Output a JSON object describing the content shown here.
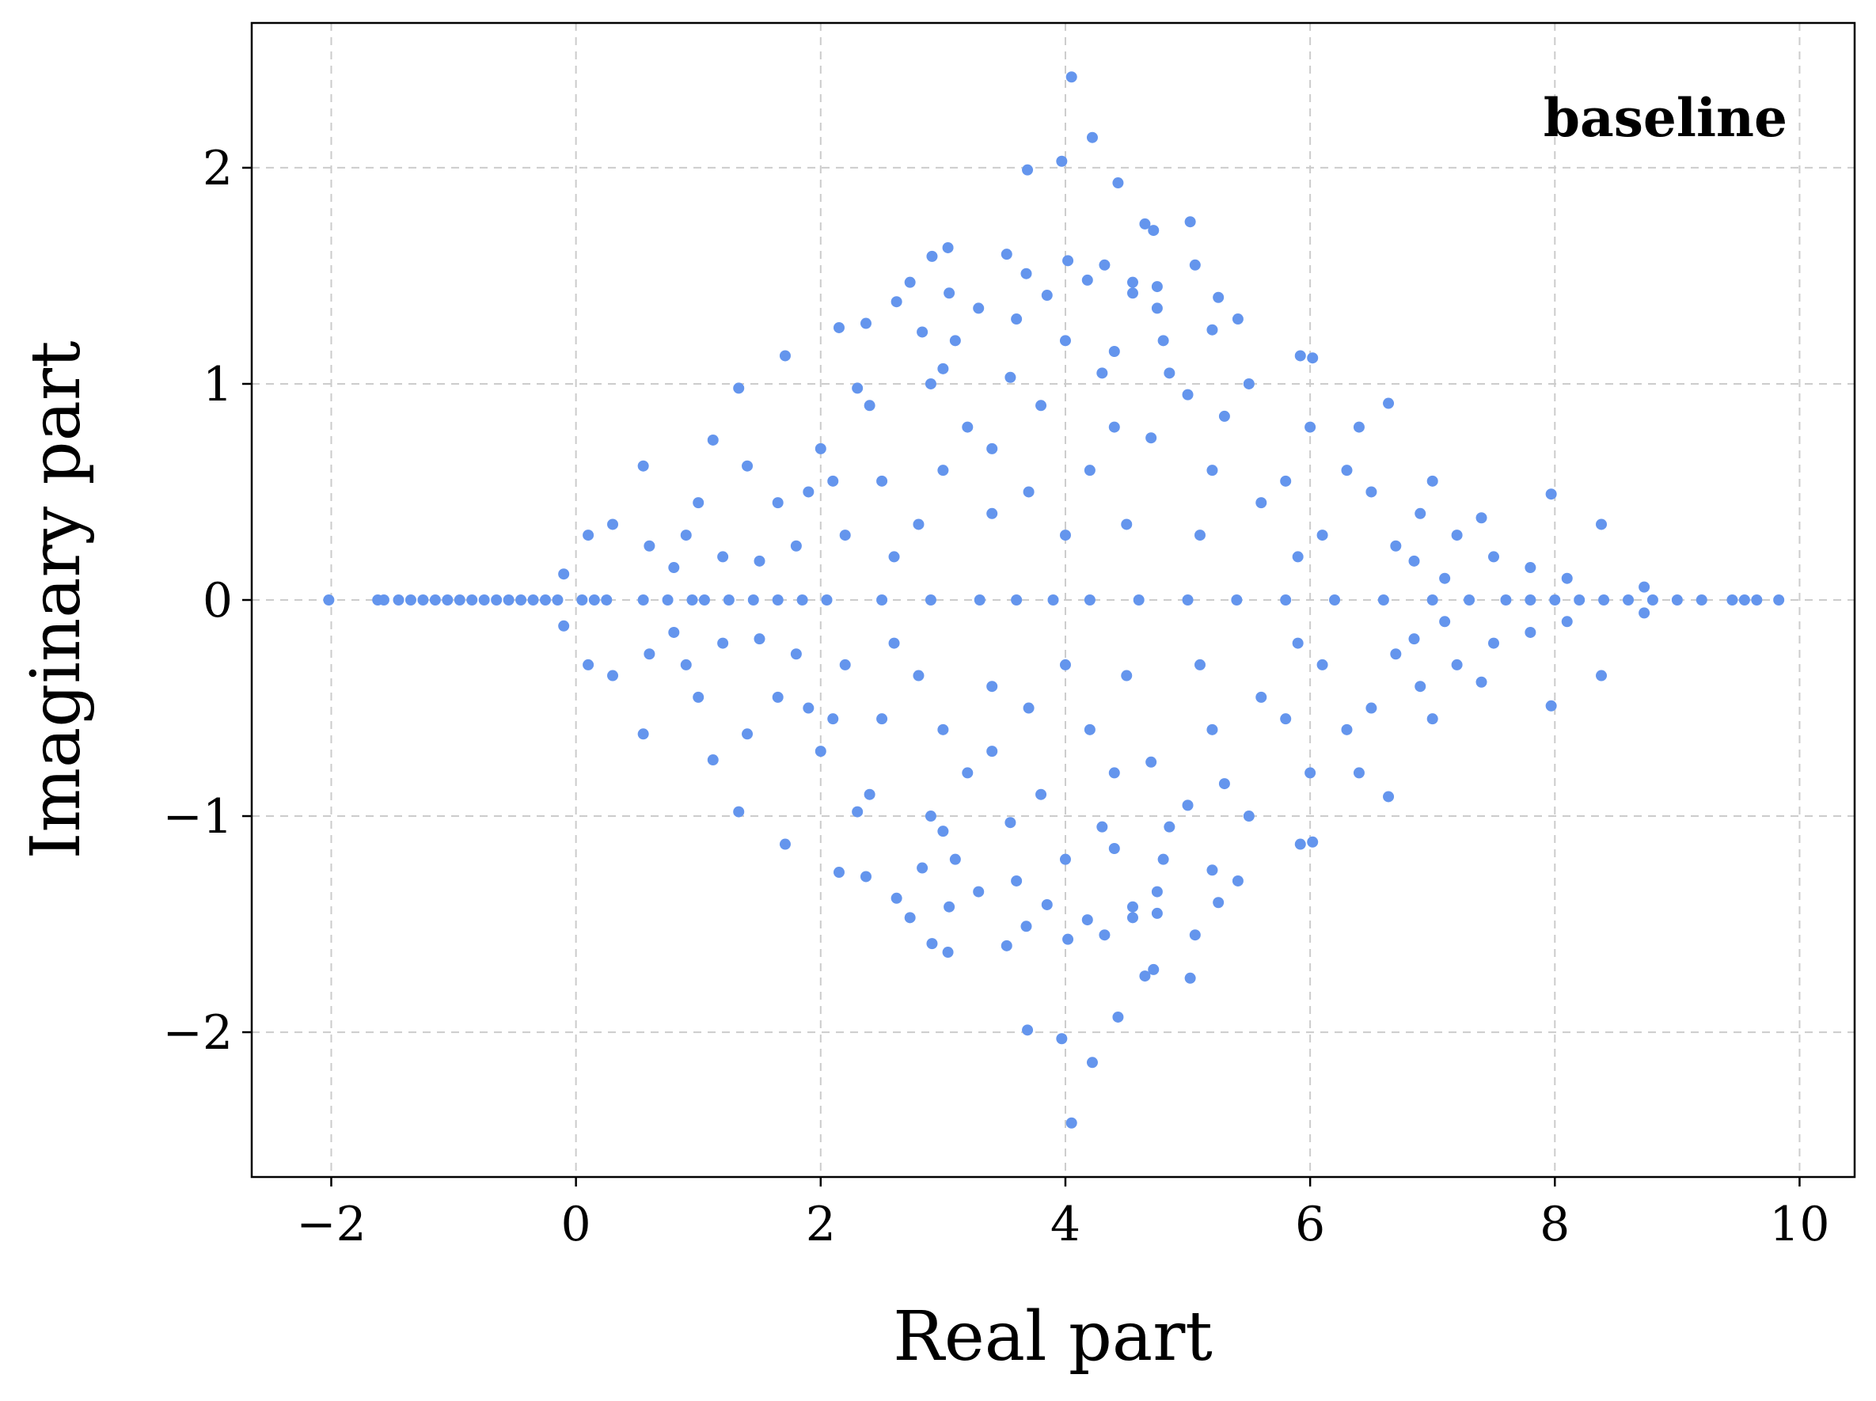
{
  "chart_data": {
    "type": "scatter",
    "xlabel": "Real part",
    "ylabel": "Imaginary part",
    "xlim": [
      -2.65,
      10.45
    ],
    "ylim": [
      -2.67,
      2.67
    ],
    "x_ticks": [
      -2,
      0,
      2,
      4,
      6,
      8,
      10
    ],
    "y_ticks": [
      -2,
      -1,
      0,
      1,
      2
    ],
    "x_tick_labels": [
      "−2",
      "0",
      "2",
      "4",
      "6",
      "8",
      "10"
    ],
    "y_tick_labels": [
      "−2",
      "−1",
      "0",
      "1",
      "2"
    ],
    "grid": true,
    "annotation": "baseline",
    "annotation_position": "top-right",
    "marker_color": "#6495ed",
    "symmetric_about_real_axis": true,
    "series": [
      {
        "points": [
          [
            -2.02,
            0.0
          ],
          [
            -1.62,
            0.0
          ],
          [
            -1.57,
            0.0
          ],
          [
            -1.45,
            0.0
          ],
          [
            -1.35,
            0.0
          ],
          [
            -1.25,
            0.0
          ],
          [
            -1.15,
            0.0
          ],
          [
            -1.05,
            0.0
          ],
          [
            -0.95,
            0.0
          ],
          [
            -0.85,
            0.0
          ],
          [
            -0.75,
            0.0
          ],
          [
            -0.65,
            0.0
          ],
          [
            -0.55,
            0.0
          ],
          [
            -0.45,
            0.0
          ],
          [
            -0.35,
            0.0
          ],
          [
            -0.25,
            0.0
          ],
          [
            -0.15,
            0.0
          ],
          [
            0.05,
            0.0
          ],
          [
            0.15,
            0.0
          ],
          [
            0.25,
            0.0
          ],
          [
            0.55,
            0.0
          ],
          [
            0.75,
            0.0
          ],
          [
            0.95,
            0.0
          ],
          [
            1.05,
            0.0
          ],
          [
            1.25,
            0.0
          ],
          [
            1.45,
            0.0
          ],
          [
            1.65,
            0.0
          ],
          [
            1.85,
            0.0
          ],
          [
            2.05,
            0.0
          ],
          [
            2.5,
            0.0
          ],
          [
            2.9,
            0.0
          ],
          [
            3.3,
            0.0
          ],
          [
            3.6,
            0.0
          ],
          [
            3.9,
            0.0
          ],
          [
            4.2,
            0.0
          ],
          [
            4.6,
            0.0
          ],
          [
            5.0,
            0.0
          ],
          [
            5.4,
            0.0
          ],
          [
            5.8,
            0.0
          ],
          [
            6.2,
            0.0
          ],
          [
            6.6,
            0.0
          ],
          [
            7.0,
            0.0
          ],
          [
            7.3,
            0.0
          ],
          [
            7.6,
            0.0
          ],
          [
            7.8,
            0.0
          ],
          [
            8.0,
            0.0
          ],
          [
            8.2,
            0.0
          ],
          [
            8.4,
            0.0
          ],
          [
            8.6,
            0.0
          ],
          [
            8.8,
            0.0
          ],
          [
            9.0,
            0.0
          ],
          [
            9.2,
            0.0
          ],
          [
            9.45,
            0.0
          ],
          [
            9.55,
            0.0
          ],
          [
            9.65,
            0.0
          ],
          [
            9.83,
            0.0
          ],
          [
            4.05,
            2.42
          ],
          [
            4.22,
            2.14
          ],
          [
            3.97,
            2.03
          ],
          [
            3.69,
            1.99
          ],
          [
            4.43,
            1.93
          ],
          [
            4.65,
            1.74
          ],
          [
            4.72,
            1.71
          ],
          [
            5.02,
            1.75
          ],
          [
            3.04,
            1.63
          ],
          [
            2.91,
            1.59
          ],
          [
            3.52,
            1.6
          ],
          [
            4.02,
            1.57
          ],
          [
            4.32,
            1.55
          ],
          [
            5.06,
            1.55
          ],
          [
            2.73,
            1.47
          ],
          [
            3.68,
            1.51
          ],
          [
            4.18,
            1.48
          ],
          [
            4.55,
            1.47
          ],
          [
            4.75,
            1.45
          ],
          [
            3.05,
            1.42
          ],
          [
            4.55,
            1.42
          ],
          [
            5.25,
            1.4
          ],
          [
            2.62,
            1.38
          ],
          [
            3.85,
            1.41
          ],
          [
            4.75,
            1.35
          ],
          [
            3.29,
            1.35
          ],
          [
            2.15,
            1.26
          ],
          [
            2.37,
            1.28
          ],
          [
            2.83,
            1.24
          ],
          [
            5.41,
            1.3
          ],
          [
            5.2,
            1.25
          ],
          [
            4.0,
            1.2
          ],
          [
            4.4,
            1.15
          ],
          [
            1.71,
            1.13
          ],
          [
            3.0,
            1.07
          ],
          [
            5.92,
            1.13
          ],
          [
            6.02,
            1.12
          ],
          [
            4.85,
            1.05
          ],
          [
            3.55,
            1.03
          ],
          [
            1.33,
            0.98
          ],
          [
            2.3,
            0.98
          ],
          [
            6.4,
            0.8
          ],
          [
            6.64,
            0.91
          ],
          [
            0.55,
            0.62
          ],
          [
            1.12,
            0.74
          ],
          [
            8.38,
            0.35
          ],
          [
            7.97,
            0.49
          ],
          [
            8.73,
            0.06
          ],
          [
            1.4,
            0.62
          ],
          [
            1.65,
            0.45
          ],
          [
            2.0,
            0.7
          ],
          [
            2.5,
            0.55
          ],
          [
            3.2,
            0.8
          ],
          [
            3.8,
            0.9
          ],
          [
            4.2,
            0.6
          ],
          [
            4.7,
            0.75
          ],
          [
            5.3,
            0.85
          ],
          [
            5.8,
            0.55
          ],
          [
            6.3,
            0.6
          ],
          [
            6.9,
            0.4
          ],
          [
            7.2,
            0.3
          ],
          [
            7.5,
            0.2
          ],
          [
            7.8,
            0.15
          ],
          [
            0.3,
            0.35
          ],
          [
            0.6,
            0.25
          ],
          [
            0.9,
            0.3
          ],
          [
            1.2,
            0.2
          ],
          [
            1.5,
            0.18
          ],
          [
            -0.1,
            0.12
          ],
          [
            0.1,
            0.3
          ],
          [
            2.2,
            0.3
          ],
          [
            2.8,
            0.35
          ],
          [
            3.4,
            0.4
          ],
          [
            4.0,
            0.3
          ],
          [
            4.5,
            0.35
          ],
          [
            5.1,
            0.3
          ],
          [
            5.6,
            0.45
          ],
          [
            6.1,
            0.3
          ],
          [
            6.7,
            0.25
          ],
          [
            7.1,
            0.1
          ],
          [
            2.4,
            0.9
          ],
          [
            3.1,
            1.2
          ],
          [
            3.6,
            1.3
          ],
          [
            4.8,
            1.2
          ],
          [
            5.5,
            1.0
          ],
          [
            6.0,
            0.8
          ],
          [
            2.9,
            1.0
          ],
          [
            5.0,
            0.95
          ],
          [
            4.3,
            1.05
          ],
          [
            3.4,
            0.7
          ],
          [
            1.9,
            0.5
          ],
          [
            6.5,
            0.5
          ],
          [
            7.0,
            0.55
          ],
          [
            1.0,
            0.45
          ],
          [
            0.8,
            0.15
          ],
          [
            8.1,
            0.1
          ],
          [
            7.4,
            0.38
          ],
          [
            6.85,
            0.18
          ],
          [
            2.6,
            0.2
          ],
          [
            3.0,
            0.6
          ],
          [
            3.7,
            0.5
          ],
          [
            4.4,
            0.8
          ],
          [
            5.2,
            0.6
          ],
          [
            5.9,
            0.2
          ],
          [
            1.8,
            0.25
          ],
          [
            2.1,
            0.55
          ]
        ]
      }
    ]
  }
}
